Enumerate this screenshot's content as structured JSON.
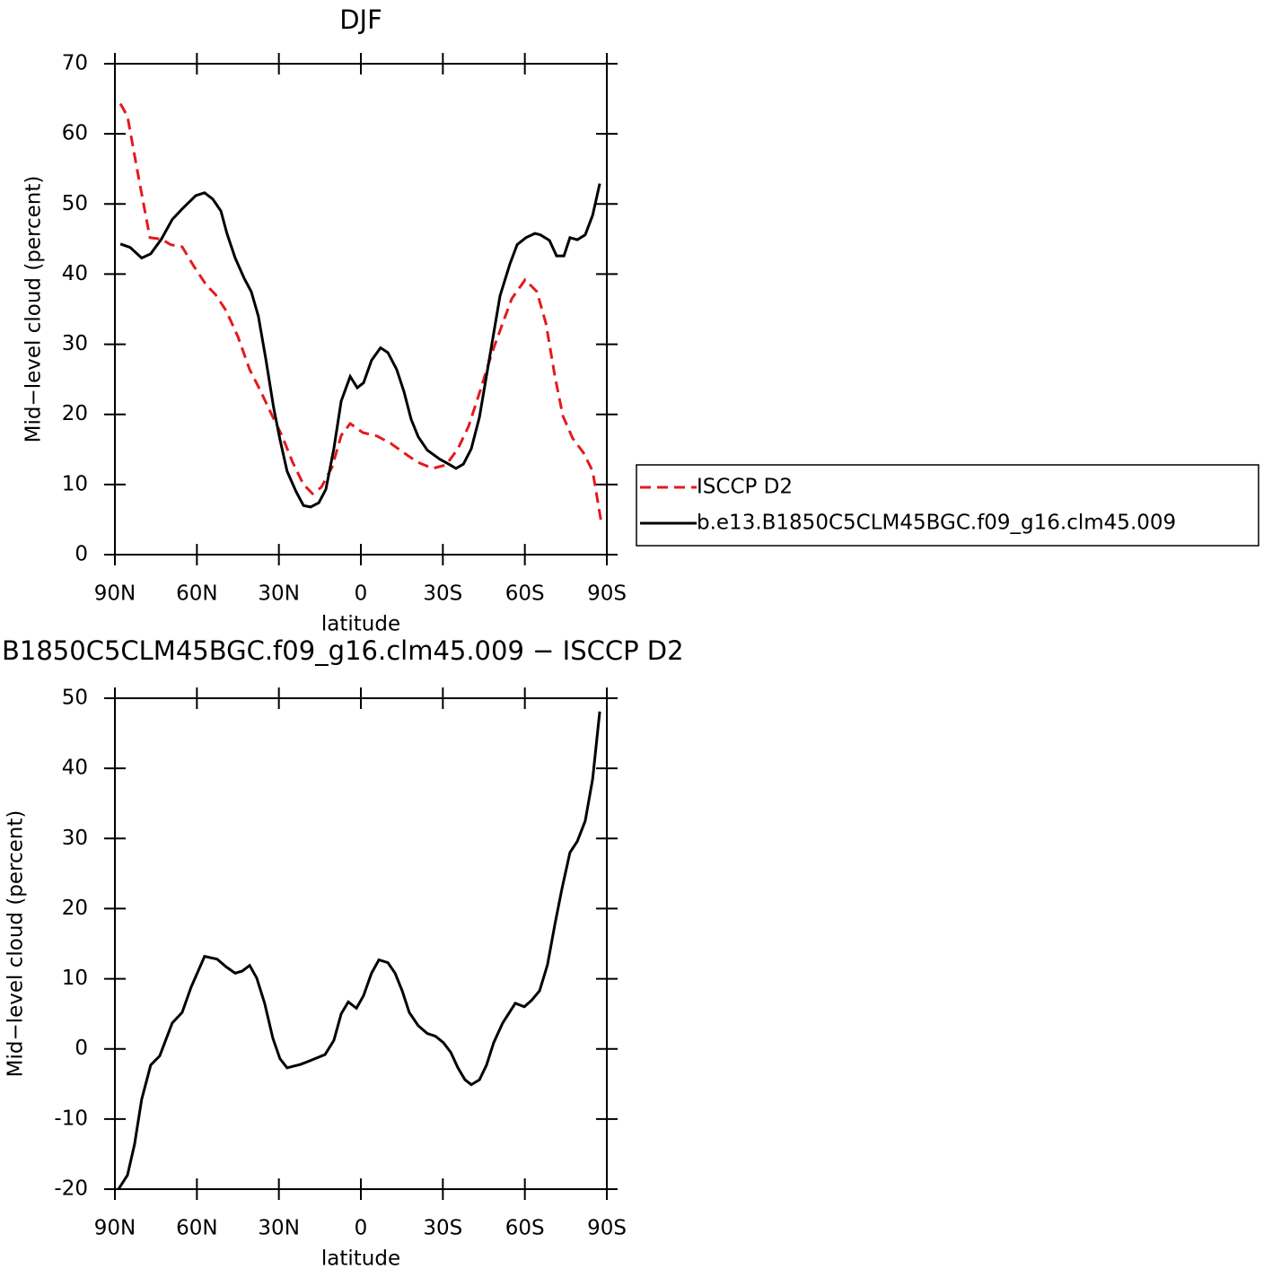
{
  "chart_data": [
    {
      "type": "line",
      "title": "DJF",
      "xlabel": "latitude",
      "ylabel": "Mid−level cloud (percent)",
      "xlim": [
        90,
        -90
      ],
      "ylim": [
        0,
        70
      ],
      "xticks": [
        {
          "value": 90,
          "label": "90N"
        },
        {
          "value": 60,
          "label": "60N"
        },
        {
          "value": 30,
          "label": "30N"
        },
        0,
        {
          "value": -30,
          "label": "30S"
        },
        {
          "value": -60,
          "label": "60S"
        },
        {
          "value": -90,
          "label": "90S"
        }
      ],
      "yticks": [
        0,
        10,
        20,
        30,
        40,
        50,
        60,
        70
      ],
      "series": [
        {
          "name": "ISCCP D2",
          "color": "#e41a1c",
          "dash": true,
          "x": [
            88,
            85.4,
            81.2,
            77.2,
            73,
            69.6,
            65.4,
            61.4,
            56.5,
            53.2,
            49.3,
            45,
            40.7,
            36.8,
            32.9,
            28.9,
            25,
            21,
            17.7,
            14.5,
            10.5,
            7.2,
            3.9,
            -0.7,
            -5.9,
            -10.8,
            -15.8,
            -20.7,
            -26.3,
            -31.2,
            -35.5,
            -39.4,
            -43.7,
            -48,
            -51.9,
            -55.2,
            -60.1,
            -64.4,
            -67.7,
            -71,
            -73.9,
            -77.5,
            -81.5,
            -84.8,
            -86.3,
            -88
          ],
          "values": [
            64.3,
            62.5,
            53.5,
            45.2,
            45,
            44.2,
            43.9,
            41.3,
            38.4,
            37.1,
            34.8,
            31.1,
            26.4,
            23.4,
            20.2,
            17,
            13.2,
            10,
            8.7,
            9.6,
            12.5,
            17,
            18.7,
            17.4,
            16.9,
            15.9,
            14.5,
            13.2,
            12.3,
            12.8,
            15.1,
            18.3,
            23.4,
            28.8,
            33,
            36.5,
            39.2,
            37.5,
            33,
            25.4,
            19.8,
            16.6,
            14.5,
            11.9,
            8.5,
            4.5
          ]
        },
        {
          "name": "b.e13.B1850C5CLM45BGC.f09_g16.clm45.009",
          "color": "#000000",
          "dash": false,
          "x": [
            88,
            84.4,
            80.2,
            76.9,
            73,
            69,
            65.4,
            60.4,
            57.2,
            54.2,
            51.2,
            49,
            46,
            42.7,
            40.1,
            37.5,
            34.8,
            31.9,
            29.6,
            27,
            23.7,
            21,
            18.4,
            15.4,
            12.8,
            9.9,
            7.2,
            3.9,
            1.3,
            -1,
            -3.9,
            -7.2,
            -9.9,
            -13.1,
            -15.8,
            -18.4,
            -21,
            -24.3,
            -28.9,
            -32.2,
            -34.8,
            -37.5,
            -40.4,
            -43.4,
            -47,
            -50.9,
            -54.5,
            -57.2,
            -60.4,
            -63.7,
            -65.7,
            -69,
            -71.6,
            -74.3,
            -76.5,
            -79.2,
            -82.1,
            -84.8,
            -87.4
          ],
          "values": [
            44.3,
            43.8,
            42.3,
            42.9,
            45,
            47.8,
            49.3,
            51.2,
            51.6,
            50.7,
            49,
            45.8,
            42.3,
            39.4,
            37.5,
            34,
            27.9,
            20.9,
            16.4,
            11.9,
            9,
            7,
            6.8,
            7.4,
            9.3,
            15.1,
            21.9,
            25.4,
            23.8,
            24.5,
            27.7,
            29.5,
            28.8,
            26.4,
            23.2,
            19.3,
            16.8,
            14.9,
            13.6,
            12.9,
            12.3,
            12.9,
            15.1,
            19.6,
            27.9,
            36.9,
            41.4,
            44.2,
            45.2,
            45.8,
            45.6,
            44.8,
            42.6,
            42.6,
            45.2,
            44.9,
            45.6,
            48.4,
            52.9
          ]
        }
      ]
    },
    {
      "type": "line",
      "title": "B1850C5CLM45BGC.f09_g16.clm45.009 − ISCCP D2",
      "xlabel": "latitude",
      "ylabel": "Mid−level cloud (percent)",
      "xlim": [
        90,
        -90
      ],
      "ylim": [
        -20,
        50
      ],
      "xticks": [
        {
          "value": 90,
          "label": "90N"
        },
        {
          "value": 60,
          "label": "60N"
        },
        {
          "value": 30,
          "label": "30N"
        },
        0,
        {
          "value": -30,
          "label": "30S"
        },
        {
          "value": -60,
          "label": "60S"
        },
        {
          "value": -90,
          "label": "90S"
        }
      ],
      "yticks": [
        -20,
        -10,
        0,
        10,
        20,
        30,
        40,
        50
      ],
      "series": [
        {
          "color": "#000000",
          "dash": false,
          "x": [
            88.7,
            85.4,
            82.8,
            80.2,
            76.9,
            73.6,
            69,
            65.4,
            62.1,
            57.2,
            52.6,
            49.3,
            46,
            43.4,
            40.7,
            38.1,
            35.2,
            32.2,
            29.6,
            27,
            22,
            18.7,
            13.1,
            9.9,
            7.2,
            4.6,
            1.6,
            -1,
            -3.9,
            -6.6,
            -9.9,
            -12.5,
            -15.1,
            -17.7,
            -21,
            -24.3,
            -27.3,
            -30.2,
            -32.9,
            -35.5,
            -38.1,
            -40.4,
            -43.4,
            -46,
            -48.6,
            -51.9,
            -56.5,
            -59.8,
            -62.4,
            -65.4,
            -68.3,
            -71,
            -73.6,
            -76.5,
            -79.2,
            -82.1,
            -84.8,
            -87.4
          ],
          "values": [
            -20,
            -18,
            -13.6,
            -7.2,
            -2.3,
            -1,
            3.7,
            5.2,
            8.8,
            13.2,
            12.8,
            11.7,
            10.8,
            11.1,
            11.9,
            10.1,
            6.5,
            1.5,
            -1.4,
            -2.7,
            -2.2,
            -1.7,
            -0.8,
            1.2,
            5,
            6.7,
            5.8,
            7.6,
            10.8,
            12.7,
            12.3,
            10.8,
            8.3,
            5.2,
            3.3,
            2.2,
            1.8,
            0.9,
            -0.5,
            -2.7,
            -4.4,
            -5.1,
            -4.4,
            -2.3,
            0.9,
            3.7,
            6.5,
            6,
            6.9,
            8.3,
            12,
            17.8,
            22.9,
            28,
            29.6,
            32.5,
            38.5,
            48.1
          ]
        }
      ]
    }
  ]
}
